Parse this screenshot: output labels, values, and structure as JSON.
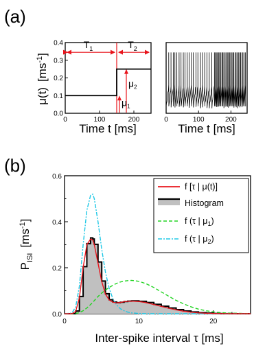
{
  "panel_a_label": "(a)",
  "panel_b_label": "(b)",
  "chart_data": [
    {
      "type": "line",
      "panel": "(a) left",
      "xlabel": "Time t [ms]",
      "ylabel": "μ(t)",
      "ylabel_unit": "[ms",
      "ylabel_unit_sup": "-1",
      "ylabel_unit_end": "]",
      "xlim": [
        0,
        250
      ],
      "ylim": [
        0,
        0.4
      ],
      "xticks": [
        0,
        100,
        200
      ],
      "yticks": [
        0.0,
        0.1,
        0.2,
        0.3,
        0.4
      ],
      "ytick_labels": [
        "0.0",
        "0.1",
        "0.2",
        "0.3",
        "0.4"
      ],
      "x": [
        0,
        150,
        150,
        250
      ],
      "y": [
        0.1,
        0.1,
        0.25,
        0.25
      ],
      "annotations": {
        "T1": "T",
        "T1_sub": "1",
        "T2": "T",
        "T2_sub": "2",
        "mu1": "μ",
        "mu1_sub": "1",
        "mu2": "μ",
        "mu2_sub": "2",
        "step_time": 150,
        "mu1_value": 0.1,
        "mu2_value": 0.25,
        "arrow_level": 0.345
      }
    },
    {
      "type": "line",
      "panel": "(a) right",
      "xlabel": "Time t [ms]",
      "xlim": [
        0,
        250
      ],
      "xticks": [
        0,
        100,
        200
      ],
      "ylim": [
        0,
        1
      ],
      "spike_times": [
        8,
        15,
        22,
        27,
        33,
        40,
        46,
        53,
        58,
        65,
        71,
        78,
        84,
        92,
        98,
        106,
        112,
        119,
        126,
        133,
        141,
        149,
        152,
        155,
        158,
        162,
        165,
        168,
        172,
        175,
        178,
        182,
        185,
        189,
        192,
        196,
        199,
        203,
        206,
        209,
        213,
        216,
        220,
        223,
        227,
        230,
        234,
        237,
        241,
        245
      ],
      "spike_height": 0.86,
      "reset_level": 0.1
    },
    {
      "type": "line",
      "panel": "(b)",
      "xlabel": "Inter-spike interval τ [ms]",
      "ylabel": "P",
      "ylabel_sub": "ISI",
      "ylabel_unit": "[ms",
      "ylabel_unit_sup": "-1",
      "ylabel_unit_end": "]",
      "xlim": [
        0,
        25
      ],
      "ylim": [
        0,
        0.6
      ],
      "xticks": [
        0,
        10,
        20
      ],
      "yticks": [
        0.0,
        0.2,
        0.4,
        0.6
      ],
      "ytick_labels": [
        "0.0",
        "0.2",
        "0.4",
        "0.6"
      ],
      "legend_position": "top-right",
      "x": [
        0,
        1,
        1.5,
        2,
        2.5,
        3,
        3.5,
        3.8,
        4,
        4.5,
        5,
        5.5,
        6,
        6.5,
        7,
        7.5,
        8,
        8.5,
        9,
        10,
        11,
        12,
        13,
        14,
        15,
        16,
        17,
        18,
        19,
        20,
        21,
        22,
        23,
        24,
        25
      ],
      "series": [
        {
          "name": "f [τ | μ(t)]",
          "color": "#e8141c",
          "values": [
            0,
            0.0,
            0.01,
            0.07,
            0.2,
            0.3,
            0.325,
            0.32,
            0.3,
            0.22,
            0.14,
            0.085,
            0.06,
            0.05,
            0.047,
            0.049,
            0.052,
            0.054,
            0.055,
            0.053,
            0.048,
            0.04,
            0.032,
            0.024,
            0.017,
            0.011,
            0.007,
            0.004,
            0.002,
            0.001,
            0.0005,
            0.0002,
            0,
            0,
            0
          ]
        },
        {
          "name": "Histogram",
          "color": "#000000",
          "fill": "#c0c0c0",
          "values": [
            0,
            0.0,
            0.012,
            0.075,
            0.205,
            0.305,
            0.33,
            0.325,
            0.302,
            0.225,
            0.142,
            0.087,
            0.061,
            0.051,
            0.048,
            0.05,
            0.053,
            0.055,
            0.056,
            0.054,
            0.049,
            0.041,
            0.033,
            0.025,
            0.018,
            0.012,
            0.008,
            0.005,
            0.003,
            0.001,
            0.0005,
            0.0002,
            0,
            0,
            0
          ]
        },
        {
          "name": "f (τ | μ",
          "name_sub": "1",
          "name_end": ")",
          "color": "#21d421",
          "dash": "5,3",
          "values": [
            0,
            0.0,
            0.001,
            0.005,
            0.013,
            0.025,
            0.04,
            0.05,
            0.057,
            0.075,
            0.09,
            0.103,
            0.114,
            0.124,
            0.132,
            0.138,
            0.142,
            0.144,
            0.145,
            0.141,
            0.13,
            0.114,
            0.095,
            0.076,
            0.058,
            0.043,
            0.03,
            0.02,
            0.013,
            0.008,
            0.005,
            0.003,
            0.002,
            0.001,
            0
          ]
        },
        {
          "name": "f (τ | μ",
          "name_sub": "2",
          "name_end": ")",
          "color": "#1ec8e6",
          "dash": "6,2,2,2",
          "values": [
            0,
            0.003,
            0.03,
            0.12,
            0.3,
            0.45,
            0.515,
            0.52,
            0.5,
            0.4,
            0.28,
            0.18,
            0.11,
            0.065,
            0.038,
            0.022,
            0.013,
            0.007,
            0.004,
            0.001,
            0,
            0,
            0,
            0,
            0,
            0,
            0,
            0,
            0,
            0,
            0,
            0,
            0,
            0,
            0
          ]
        }
      ]
    }
  ]
}
